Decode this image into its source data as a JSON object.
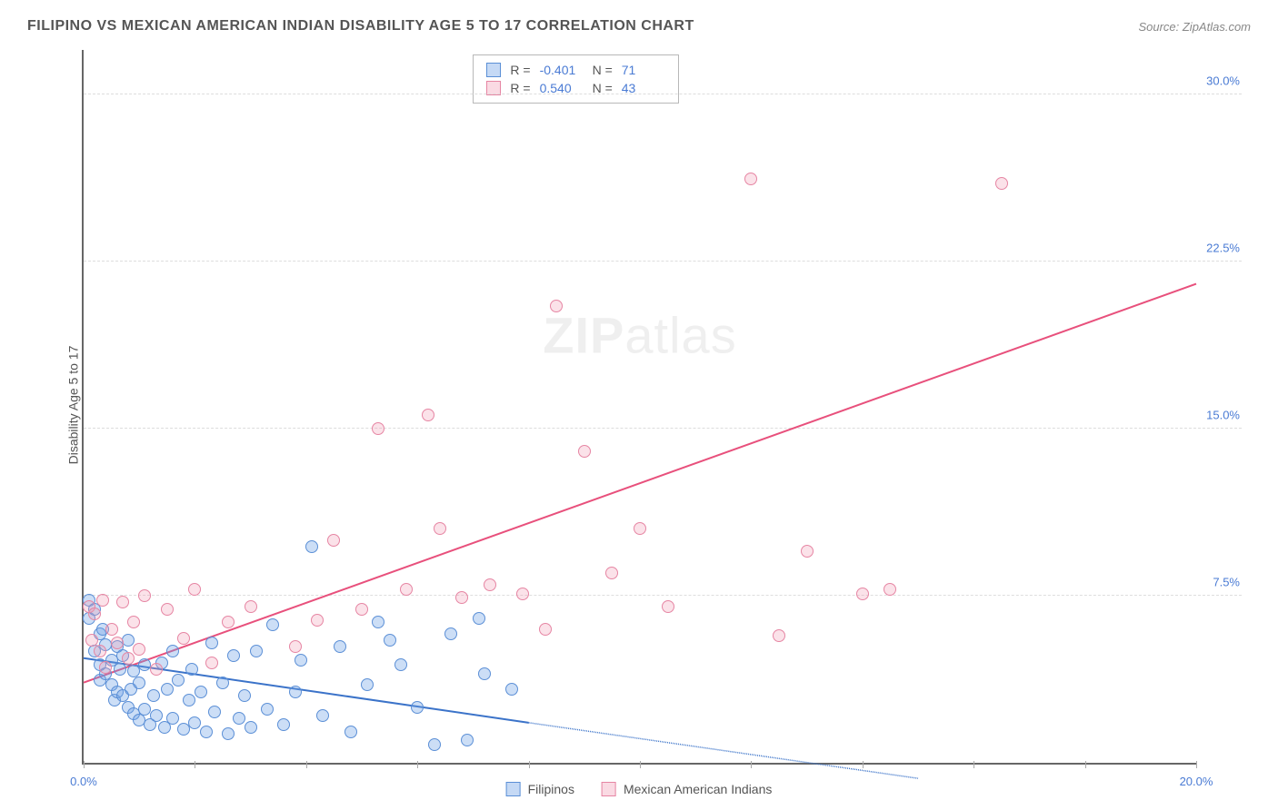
{
  "title": "FILIPINO VS MEXICAN AMERICAN INDIAN DISABILITY AGE 5 TO 17 CORRELATION CHART",
  "source": "Source: ZipAtlas.com",
  "y_axis_label": "Disability Age 5 to 17",
  "watermark_zip": "ZIP",
  "watermark_atlas": "atlas",
  "chart": {
    "type": "scatter",
    "xlim": [
      0,
      20
    ],
    "ylim": [
      0,
      32
    ],
    "x_ticks": [
      0,
      2,
      4,
      6,
      8,
      10,
      12,
      14,
      16,
      18,
      20
    ],
    "x_tick_labels": {
      "0": "0.0%",
      "20": "20.0%"
    },
    "y_ticks": [
      7.5,
      15.0,
      22.5,
      30.0
    ],
    "y_tick_labels": [
      "7.5%",
      "15.0%",
      "22.5%",
      "30.0%"
    ],
    "background_color": "#ffffff",
    "grid_color": "#dddddd",
    "axis_color": "#666666",
    "series": [
      {
        "name": "Filipinos",
        "color_fill": "rgba(110,160,230,0.35)",
        "color_stroke": "#5b8fd6",
        "trend_color": "#3b73c9",
        "R": "-0.401",
        "N": "71",
        "trend": {
          "x1": 0,
          "y1": 4.7,
          "x2": 8,
          "y2": 1.8,
          "dash_ext_x2": 15,
          "dash_ext_y2": -0.7
        },
        "points": [
          [
            0.1,
            7.3
          ],
          [
            0.1,
            6.5
          ],
          [
            0.2,
            5.0
          ],
          [
            0.2,
            6.9
          ],
          [
            0.3,
            4.4
          ],
          [
            0.3,
            5.8
          ],
          [
            0.3,
            3.7
          ],
          [
            0.35,
            6.0
          ],
          [
            0.4,
            4.0
          ],
          [
            0.4,
            5.3
          ],
          [
            0.5,
            3.5
          ],
          [
            0.5,
            4.6
          ],
          [
            0.55,
            2.8
          ],
          [
            0.6,
            5.2
          ],
          [
            0.6,
            3.2
          ],
          [
            0.65,
            4.2
          ],
          [
            0.7,
            3.0
          ],
          [
            0.7,
            4.8
          ],
          [
            0.8,
            2.5
          ],
          [
            0.8,
            5.5
          ],
          [
            0.85,
            3.3
          ],
          [
            0.9,
            2.2
          ],
          [
            0.9,
            4.1
          ],
          [
            1.0,
            1.9
          ],
          [
            1.0,
            3.6
          ],
          [
            1.1,
            2.4
          ],
          [
            1.1,
            4.4
          ],
          [
            1.2,
            1.7
          ],
          [
            1.25,
            3.0
          ],
          [
            1.3,
            2.1
          ],
          [
            1.4,
            4.5
          ],
          [
            1.45,
            1.6
          ],
          [
            1.5,
            3.3
          ],
          [
            1.6,
            2.0
          ],
          [
            1.6,
            5.0
          ],
          [
            1.7,
            3.7
          ],
          [
            1.8,
            1.5
          ],
          [
            1.9,
            2.8
          ],
          [
            1.95,
            4.2
          ],
          [
            2.0,
            1.8
          ],
          [
            2.1,
            3.2
          ],
          [
            2.2,
            1.4
          ],
          [
            2.3,
            5.4
          ],
          [
            2.35,
            2.3
          ],
          [
            2.5,
            3.6
          ],
          [
            2.6,
            1.3
          ],
          [
            2.7,
            4.8
          ],
          [
            2.8,
            2.0
          ],
          [
            2.9,
            3.0
          ],
          [
            3.0,
            1.6
          ],
          [
            3.1,
            5.0
          ],
          [
            3.3,
            2.4
          ],
          [
            3.4,
            6.2
          ],
          [
            3.6,
            1.7
          ],
          [
            3.8,
            3.2
          ],
          [
            3.9,
            4.6
          ],
          [
            4.1,
            9.7
          ],
          [
            4.3,
            2.1
          ],
          [
            4.6,
            5.2
          ],
          [
            4.8,
            1.4
          ],
          [
            5.1,
            3.5
          ],
          [
            5.3,
            6.3
          ],
          [
            5.7,
            4.4
          ],
          [
            6.0,
            2.5
          ],
          [
            6.3,
            0.8
          ],
          [
            6.6,
            5.8
          ],
          [
            6.9,
            1.0
          ],
          [
            7.2,
            4.0
          ],
          [
            7.7,
            3.3
          ],
          [
            7.1,
            6.5
          ],
          [
            5.5,
            5.5
          ]
        ]
      },
      {
        "name": "Mexican American Indians",
        "color_fill": "rgba(240,150,175,0.28)",
        "color_stroke": "#e685a3",
        "trend_color": "#e8507c",
        "R": "0.540",
        "N": "43",
        "trend": {
          "x1": 0,
          "y1": 3.6,
          "x2": 20,
          "y2": 21.5
        },
        "points": [
          [
            0.1,
            7.0
          ],
          [
            0.15,
            5.5
          ],
          [
            0.2,
            6.7
          ],
          [
            0.3,
            5.0
          ],
          [
            0.35,
            7.3
          ],
          [
            0.4,
            4.3
          ],
          [
            0.5,
            6.0
          ],
          [
            0.6,
            5.4
          ],
          [
            0.7,
            7.2
          ],
          [
            0.8,
            4.7
          ],
          [
            0.9,
            6.3
          ],
          [
            1.0,
            5.1
          ],
          [
            1.1,
            7.5
          ],
          [
            1.3,
            4.2
          ],
          [
            1.5,
            6.9
          ],
          [
            1.8,
            5.6
          ],
          [
            2.0,
            7.8
          ],
          [
            2.3,
            4.5
          ],
          [
            2.6,
            6.3
          ],
          [
            3.0,
            7.0
          ],
          [
            3.8,
            5.2
          ],
          [
            4.2,
            6.4
          ],
          [
            4.5,
            10.0
          ],
          [
            5.0,
            6.9
          ],
          [
            5.3,
            15.0
          ],
          [
            5.8,
            7.8
          ],
          [
            6.2,
            15.6
          ],
          [
            6.4,
            10.5
          ],
          [
            6.8,
            7.4
          ],
          [
            7.3,
            8.0
          ],
          [
            7.9,
            7.6
          ],
          [
            8.3,
            6.0
          ],
          [
            8.5,
            20.5
          ],
          [
            9.0,
            14.0
          ],
          [
            9.5,
            8.5
          ],
          [
            10.0,
            10.5
          ],
          [
            10.5,
            7.0
          ],
          [
            12.0,
            26.2
          ],
          [
            12.5,
            5.7
          ],
          [
            13.0,
            9.5
          ],
          [
            14.0,
            7.6
          ],
          [
            14.5,
            7.8
          ],
          [
            16.5,
            26.0
          ]
        ]
      }
    ]
  },
  "legend": {
    "series1_label": "Filipinos",
    "series2_label": "Mexican American Indians"
  },
  "stats_labels": {
    "R": "R =",
    "N": "N ="
  }
}
